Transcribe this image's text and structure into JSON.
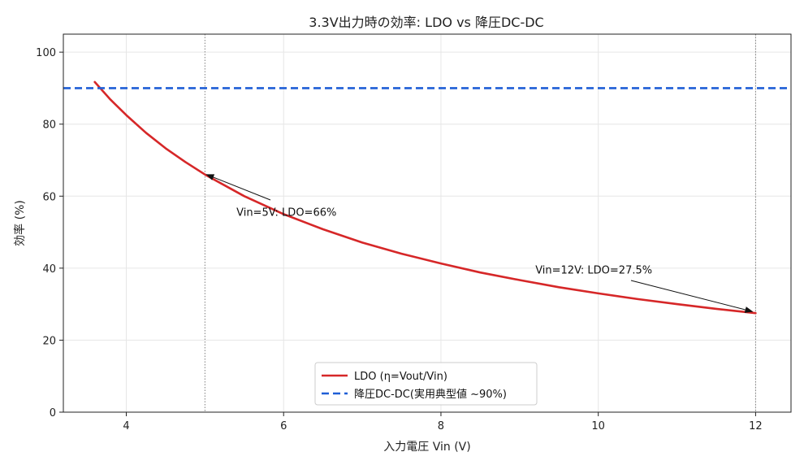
{
  "chart_data": {
    "type": "line",
    "title": "3.3V出力時の効率: LDO vs 降圧DC-DC",
    "xlabel": "入力電圧 Vin (V)",
    "ylabel": "効率 (%)",
    "xlim": [
      3.2,
      12.45
    ],
    "ylim": [
      0,
      105
    ],
    "xticks": [
      4,
      6,
      8,
      10,
      12
    ],
    "yticks": [
      0,
      20,
      40,
      60,
      80,
      100
    ],
    "grid": true,
    "legend_position": "bottom-center",
    "series": [
      {
        "name": "LDO (η=Vout/Vin)",
        "color": "#d62728",
        "style": "solid",
        "x": [
          3.6,
          3.8,
          4.0,
          4.25,
          4.5,
          4.75,
          5.0,
          5.5,
          6.0,
          6.5,
          7.0,
          7.5,
          8.0,
          8.5,
          9.0,
          9.5,
          10.0,
          10.5,
          11.0,
          11.5,
          12.0
        ],
        "values": [
          91.7,
          86.8,
          82.5,
          77.6,
          73.3,
          69.5,
          66.0,
          60.0,
          55.0,
          50.8,
          47.1,
          44.0,
          41.3,
          38.8,
          36.7,
          34.7,
          33.0,
          31.4,
          30.0,
          28.7,
          27.5
        ]
      },
      {
        "name": "降圧DC-DC(実用典型値 ~90%)",
        "color": "#1f5fd6",
        "style": "dashed",
        "y_constant": 90
      }
    ],
    "vlines": [
      5,
      12
    ],
    "annotations": [
      {
        "text": "Vin=5V: LDO=66%",
        "point": [
          5,
          66
        ],
        "text_at": [
          5.4,
          54.5
        ]
      },
      {
        "text": "Vin=12V: LDO=27.5%",
        "point": [
          12,
          27.5
        ],
        "text_at": [
          9.2,
          38.5
        ]
      }
    ]
  }
}
